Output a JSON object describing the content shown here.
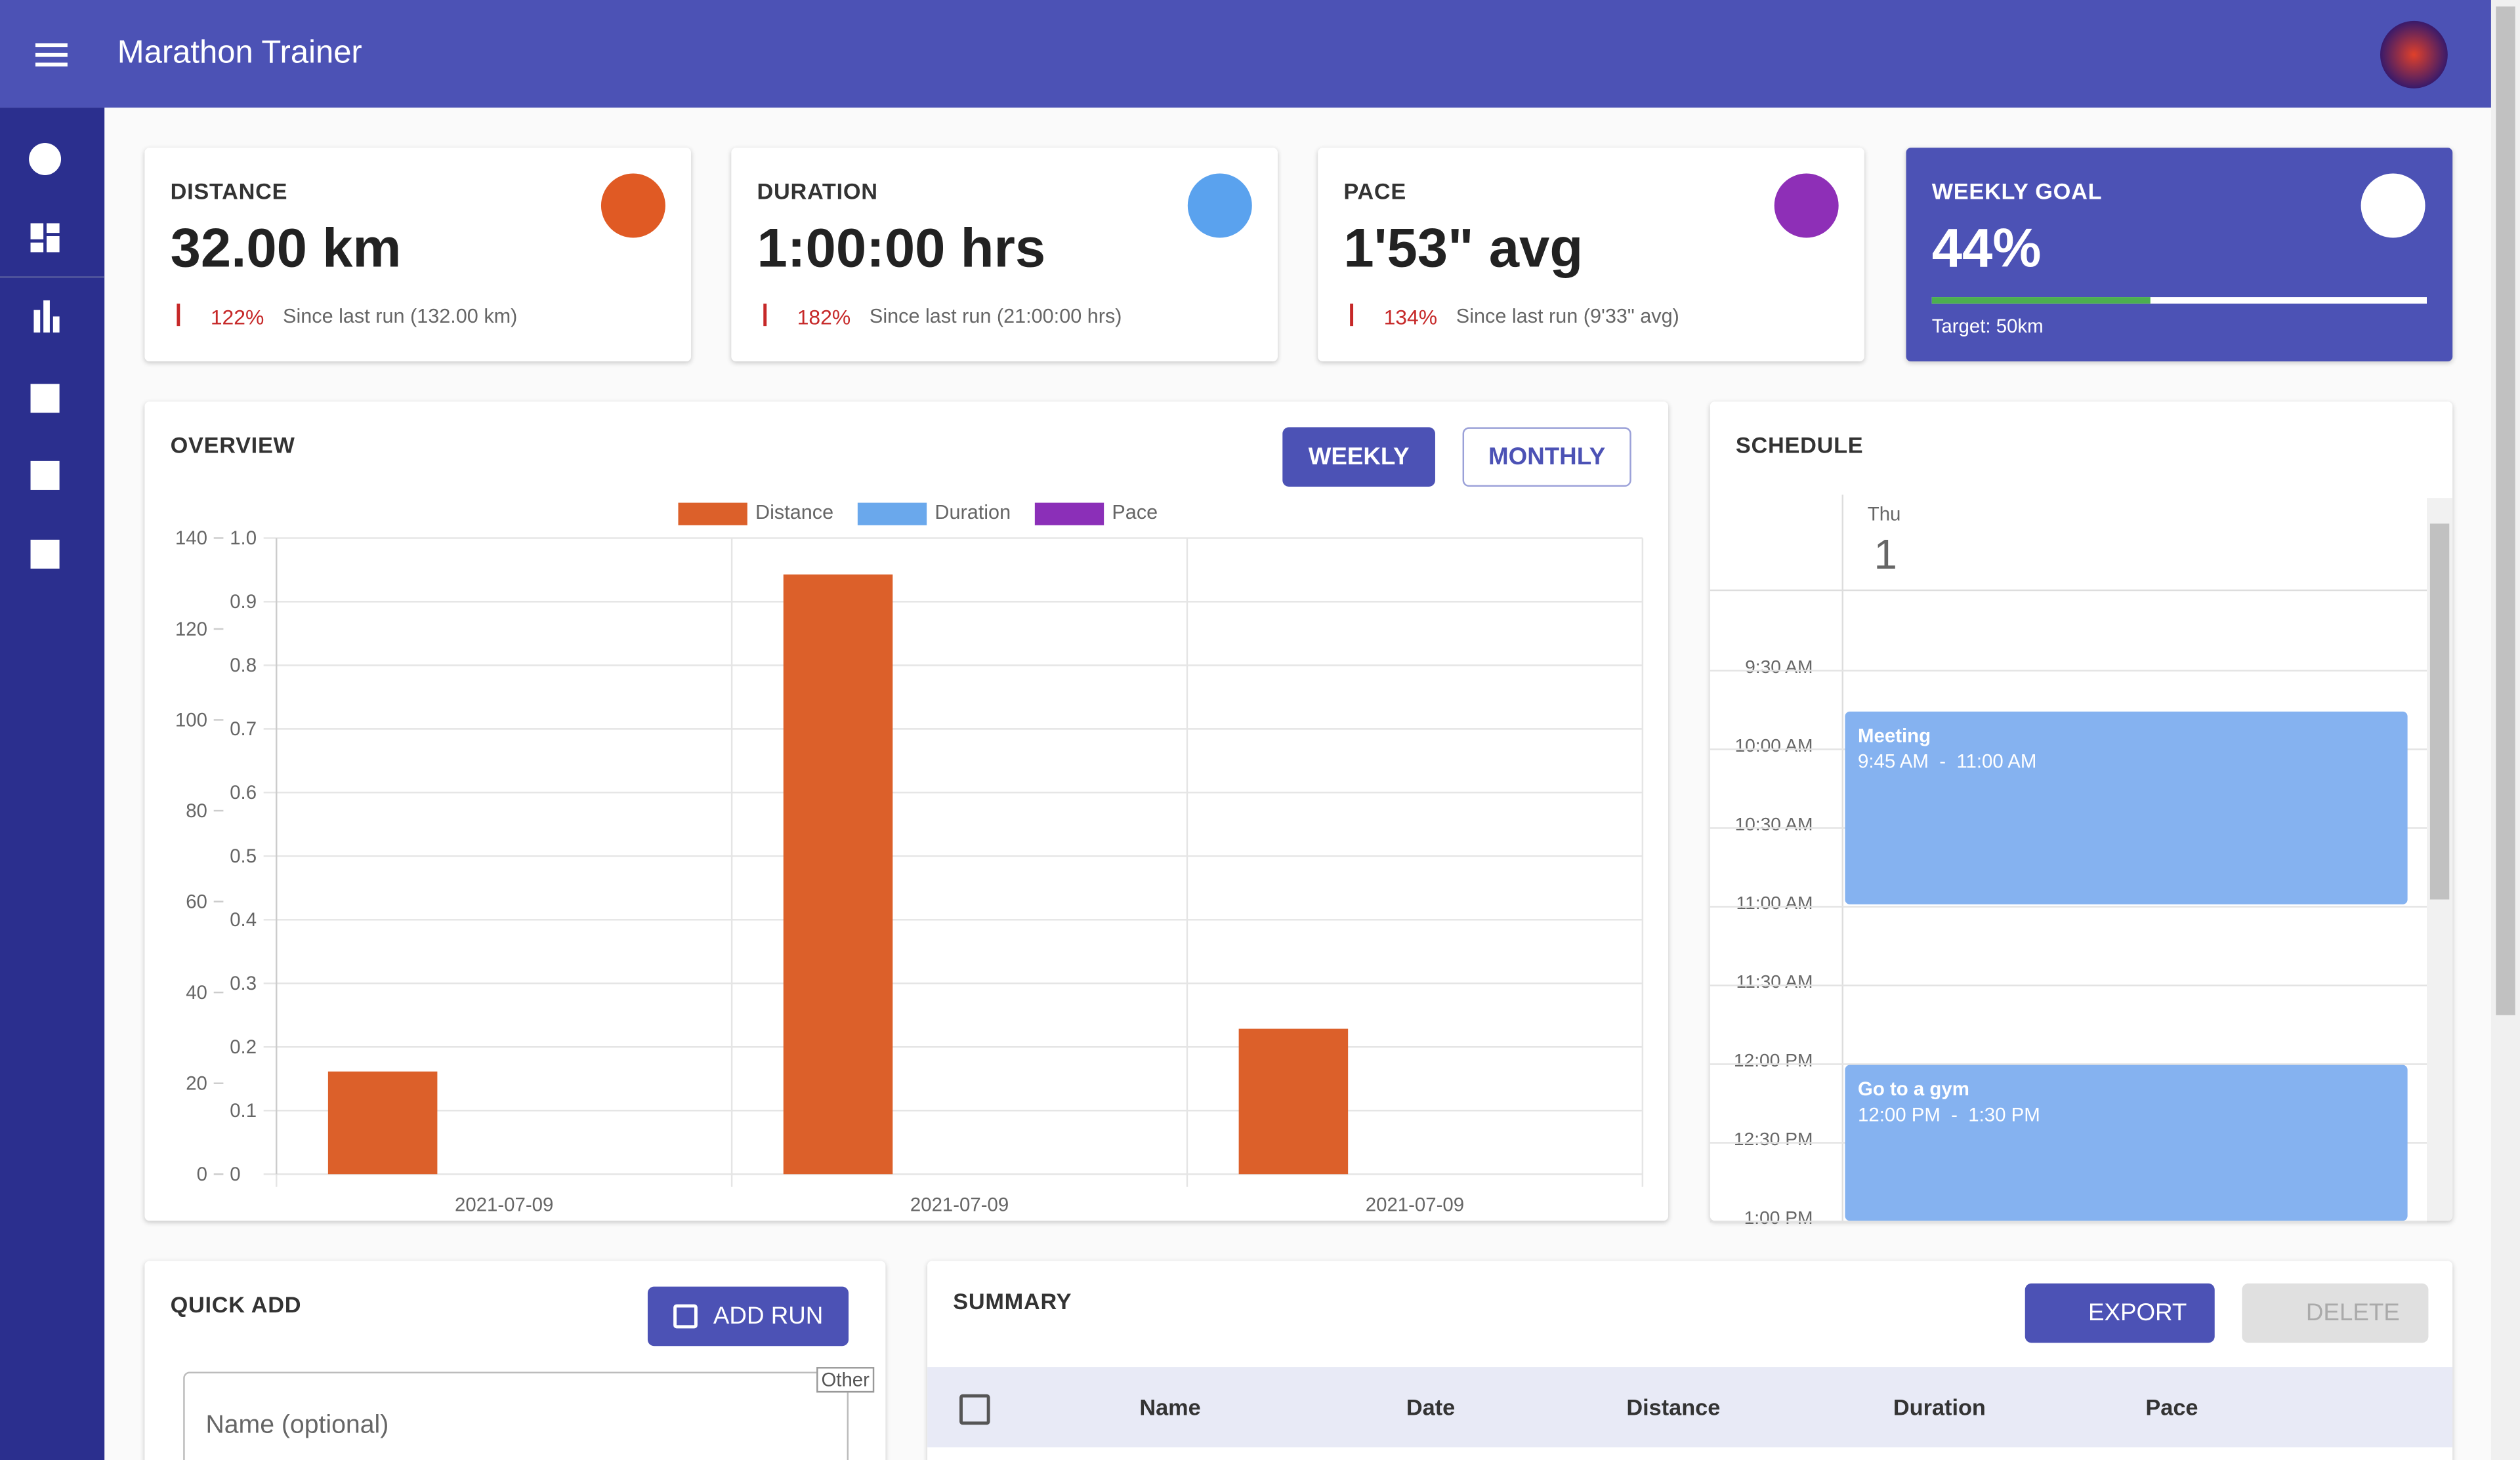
{
  "header": {
    "title": "Marathon Trainer"
  },
  "cards": [
    {
      "label": "DISTANCE",
      "value": "32.00 km",
      "change": "122%",
      "note": "Since last run (132.00 km)",
      "color": "#e05a24"
    },
    {
      "label": "DURATION",
      "value": "1:00:00 hrs",
      "change": "182%",
      "note": "Since last run (21:00:00 hrs)",
      "color": "#5aa2ee"
    },
    {
      "label": "PACE",
      "value": "1'53\" avg",
      "change": "134%",
      "note": "Since last run (9'33\" avg)",
      "color": "#8e2fb7"
    }
  ],
  "goal": {
    "label": "WEEKLY GOAL",
    "value": "44%",
    "progress": 44,
    "target": "Target: 50km"
  },
  "overview": {
    "title": "OVERVIEW",
    "buttons": [
      "WEEKLY",
      "MONTHLY"
    ]
  },
  "chart_data": {
    "type": "bar",
    "categories": [
      "2021-07-09",
      "2021-07-09",
      "2021-07-09"
    ],
    "series": [
      {
        "name": "Distance",
        "color": "#dc602a",
        "values": [
          22.6,
          132,
          32
        ]
      },
      {
        "name": "Duration",
        "color": "#6aa8ec",
        "values": [
          null,
          null,
          null
        ],
        "axis": "y2"
      },
      {
        "name": "Pace",
        "color": "#8b2fb8",
        "values": [
          null,
          null,
          null
        ],
        "axis": "y2"
      }
    ],
    "ylim": [
      0,
      140
    ],
    "yticks": [
      0,
      20,
      40,
      60,
      80,
      100,
      120,
      140
    ],
    "y2lim": [
      0,
      1
    ],
    "y2ticks": [
      0,
      0.1,
      0.2,
      0.3,
      0.4,
      0.5,
      0.6,
      0.7,
      0.8,
      0.9,
      {
        "value": 1,
        "label": "1.0"
      }
    ],
    "grid": true,
    "legend": "top"
  },
  "schedule": {
    "title": "SCHEDULE",
    "day_name": "Thu",
    "day_num": "1",
    "times": [
      "9:30 AM",
      "10:00 AM",
      "10:30 AM",
      "11:00 AM",
      "11:30 AM",
      "12:00 PM",
      "12:30 PM",
      "1:00 PM"
    ],
    "events": [
      {
        "title": "Meeting",
        "time": "9:45 AM  -  11:00 AM"
      },
      {
        "title": "Go to a gym",
        "time": "12:00 PM  -  1:30 PM"
      }
    ]
  },
  "quick_add": {
    "title": "QUICK ADD",
    "button": "ADD RUN",
    "placeholder": "Name (optional)",
    "badge": "Other"
  },
  "summary": {
    "title": "SUMMARY",
    "export": "EXPORT",
    "delete": "DELETE",
    "columns": [
      "Name",
      "Date",
      "Distance",
      "Duration",
      "Pace"
    ]
  }
}
